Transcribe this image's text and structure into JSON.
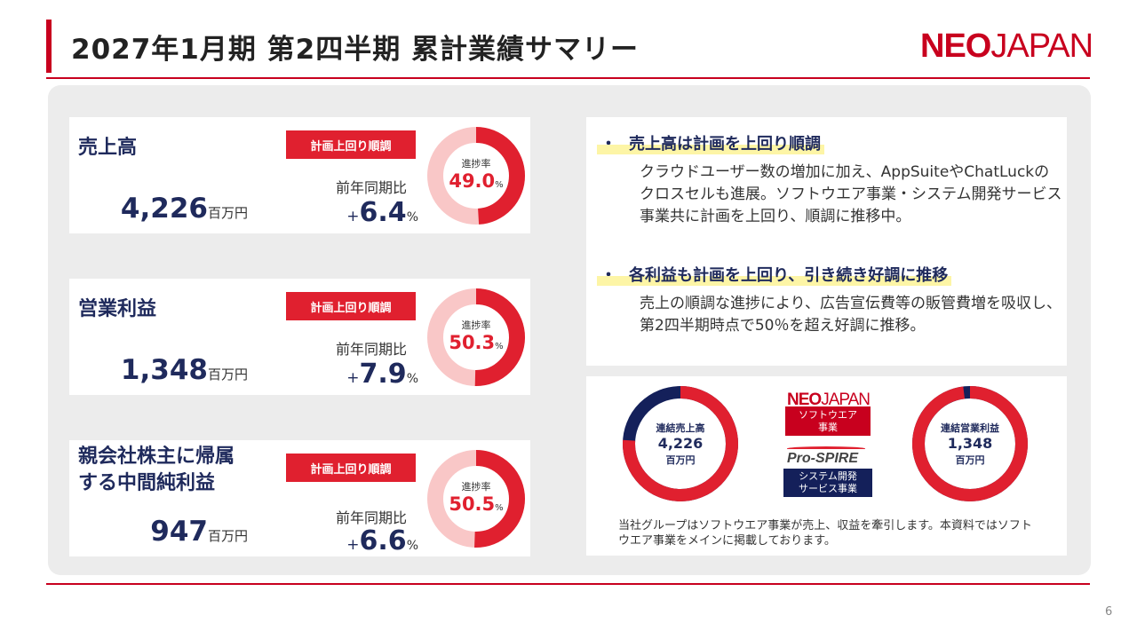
{
  "header": {
    "title": "2027年1月期 第2四半期 累計業績サマリー",
    "logo_bold": "NEO",
    "logo_regular": "JAPAN"
  },
  "colors": {
    "accent": "#c8001e",
    "navy": "#1f2a5c",
    "donut_bg": "#f9c7c7",
    "donut_fill": "#e0202f",
    "segment_navy": "#14205a",
    "highlight": "#fdf5a6"
  },
  "kpis": [
    {
      "title": "売上高",
      "value": "4,226",
      "unit": "百万円",
      "badge": "計画上回り順調",
      "yoy_label": "前年同期比",
      "yoy_sign": "+",
      "yoy_value": "6.4",
      "yoy_unit": "%",
      "progress_label": "進捗率",
      "progress_value": "49.0",
      "progress_unit": "%",
      "progress": 49.0
    },
    {
      "title": "営業利益",
      "value": "1,348",
      "unit": "百万円",
      "badge": "計画上回り順調",
      "yoy_label": "前年同期比",
      "yoy_sign": "+",
      "yoy_value": "7.9",
      "yoy_unit": "%",
      "progress_label": "進捗率",
      "progress_value": "50.3",
      "progress_unit": "%",
      "progress": 50.3
    },
    {
      "title_line1": "親会社株主に帰属",
      "title_line2": "する中間純利益",
      "value": "947",
      "unit": "百万円",
      "badge": "計画上回り順調",
      "yoy_label": "前年同期比",
      "yoy_sign": "+",
      "yoy_value": "6.6",
      "yoy_unit": "%",
      "progress_label": "進捗率",
      "progress_value": "50.5",
      "progress_unit": "%",
      "progress": 50.5
    }
  ],
  "summary": {
    "bullet": "・",
    "items": [
      {
        "heading": "売上高は計画を上回り順調",
        "body": "クラウドユーザー数の増加に加え、AppSuiteやChatLuckのクロスセルも進展。ソフトウエア事業・システム開発サービス事業共に計画を上回り、順調に推移中。"
      },
      {
        "heading": "各利益も計画を上回り、引き続き好調に推移",
        "body": "売上の順調な進捗により、広告宣伝費等の販管費増を吸収し、第2四半期時点で50％を超え好調に推移。"
      }
    ]
  },
  "segments": {
    "sales_donut": {
      "line1": "連結売上高",
      "line2": "4,226",
      "line3": "百万円",
      "software_share": 0.76,
      "system_share": 0.24
    },
    "profit_donut": {
      "line1": "連結営業利益",
      "line2": "1,348",
      "line3": "百万円",
      "software_share": 0.98,
      "system_share": 0.02
    },
    "neo_bold": "NEO",
    "neo_regular": "JAPAN",
    "software_label_line1": "ソフトウエア",
    "software_label_line2": "事業",
    "prospire_logo": "Pro-SPIRE",
    "system_label_line1": "システム開発",
    "system_label_line2": "サービス事業",
    "note": "当社グループはソフトウエア事業が売上、収益を牽引します。本資料ではソフトウエア事業をメインに掲載しております。"
  },
  "page_number": "6"
}
